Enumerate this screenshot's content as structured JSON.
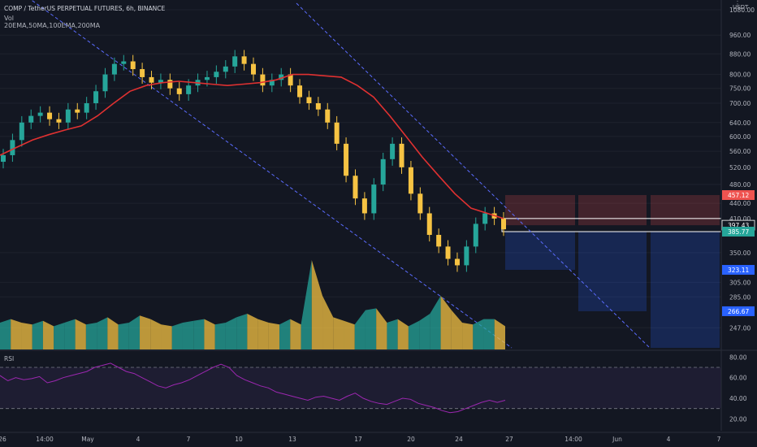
{
  "header": {
    "title": "COMP / TetherUS PERPETUAL FUTURES, 6h, BINANCE",
    "volume_label": "Vol",
    "ma_label": "20EMA,50MA,100EMA,200MA",
    "rsi_label": "RSI",
    "currency": "USDT",
    "menu": "⋮"
  },
  "colors": {
    "background": "#131722",
    "up": "#26a69a",
    "down": "#f6c343",
    "ema": "#e03131",
    "rsi": "#9c27b0",
    "stop_zone": "#ef5350",
    "target_zone": "#2962ff",
    "trend": "#5b6cff"
  },
  "chart_data": [
    {
      "type": "candlestick",
      "title": "COMP / TetherUS PERPETUAL FUTURES, 6h, BINANCE",
      "y_scale": "log",
      "ylim": [
        225,
        1080
      ],
      "y_ticks": [
        "1080.00",
        "960.00",
        "880.00",
        "800.00",
        "750.00",
        "700.00",
        "640.00",
        "600.00",
        "560.00",
        "520.00",
        "480.00",
        "440.00",
        "410.00",
        "350.00",
        "305.00",
        "285.00",
        "247.00"
      ],
      "x_ticks": [
        "26",
        "14:00",
        "May",
        "4",
        "7",
        "10",
        "13",
        "17",
        "20",
        "24",
        "27",
        "14:00",
        "Jun",
        "4",
        "7"
      ],
      "price_labels": [
        {
          "text": "457.12",
          "value": 457.12,
          "color": "#ef5350"
        },
        {
          "text": "397.43",
          "value": 397.43,
          "color": "#ffffff"
        },
        {
          "text": "385.77",
          "value": 385.77,
          "color": "#26a69a"
        },
        {
          "text": "323.11",
          "value": 323.11,
          "color": "#2962ff"
        },
        {
          "text": "266.67",
          "value": 266.67,
          "color": "#2962ff"
        }
      ],
      "series": [
        {
          "name": "20EMA",
          "values": [
            550,
            570,
            590,
            605,
            618,
            630,
            660,
            700,
            740,
            760,
            770,
            775,
            770,
            765,
            760,
            765,
            770,
            780,
            800,
            800,
            795,
            790,
            760,
            720,
            660,
            600,
            545,
            500,
            460,
            430,
            420,
            410
          ]
        }
      ],
      "candles": [
        550,
        590,
        640,
        660,
        670,
        650,
        640,
        680,
        670,
        700,
        740,
        800,
        840,
        850,
        820,
        790,
        770,
        780,
        750,
        730,
        760,
        780,
        790,
        810,
        830,
        870,
        840,
        800,
        760,
        780,
        800,
        760,
        720,
        700,
        680,
        640,
        580,
        500,
        450,
        420,
        480,
        540,
        580,
        520,
        460,
        420,
        380,
        360,
        340,
        330,
        360,
        400,
        420,
        410,
        390
      ]
    },
    {
      "type": "area",
      "title": "Vol",
      "values": [
        30,
        34,
        30,
        28,
        32,
        26,
        30,
        34,
        28,
        30,
        36,
        28,
        30,
        38,
        34,
        28,
        26,
        30,
        32,
        34,
        28,
        30,
        36,
        40,
        34,
        30,
        28,
        34,
        28,
        100,
        60,
        36,
        32,
        28,
        44,
        46,
        30,
        34,
        26,
        32,
        40,
        60,
        44,
        30,
        28,
        34,
        34,
        26
      ]
    },
    {
      "type": "line",
      "title": "RSI",
      "ylim": [
        10,
        85
      ],
      "y_ticks": [
        "80.00",
        "60.00",
        "40.00",
        "20.00"
      ],
      "levels": [
        70,
        30
      ],
      "values": [
        62,
        57,
        60,
        58,
        59,
        61,
        55,
        57,
        60,
        62,
        64,
        66,
        70,
        72,
        74,
        70,
        66,
        64,
        60,
        56,
        52,
        50,
        53,
        55,
        58,
        62,
        66,
        70,
        73,
        70,
        62,
        58,
        55,
        52,
        50,
        46,
        44,
        42,
        40,
        38,
        41,
        42,
        40,
        38,
        42,
        45,
        40,
        37,
        35,
        34,
        37,
        40,
        39,
        35,
        33,
        31,
        28,
        26,
        27,
        30,
        33,
        36,
        38,
        36,
        38
      ]
    }
  ]
}
